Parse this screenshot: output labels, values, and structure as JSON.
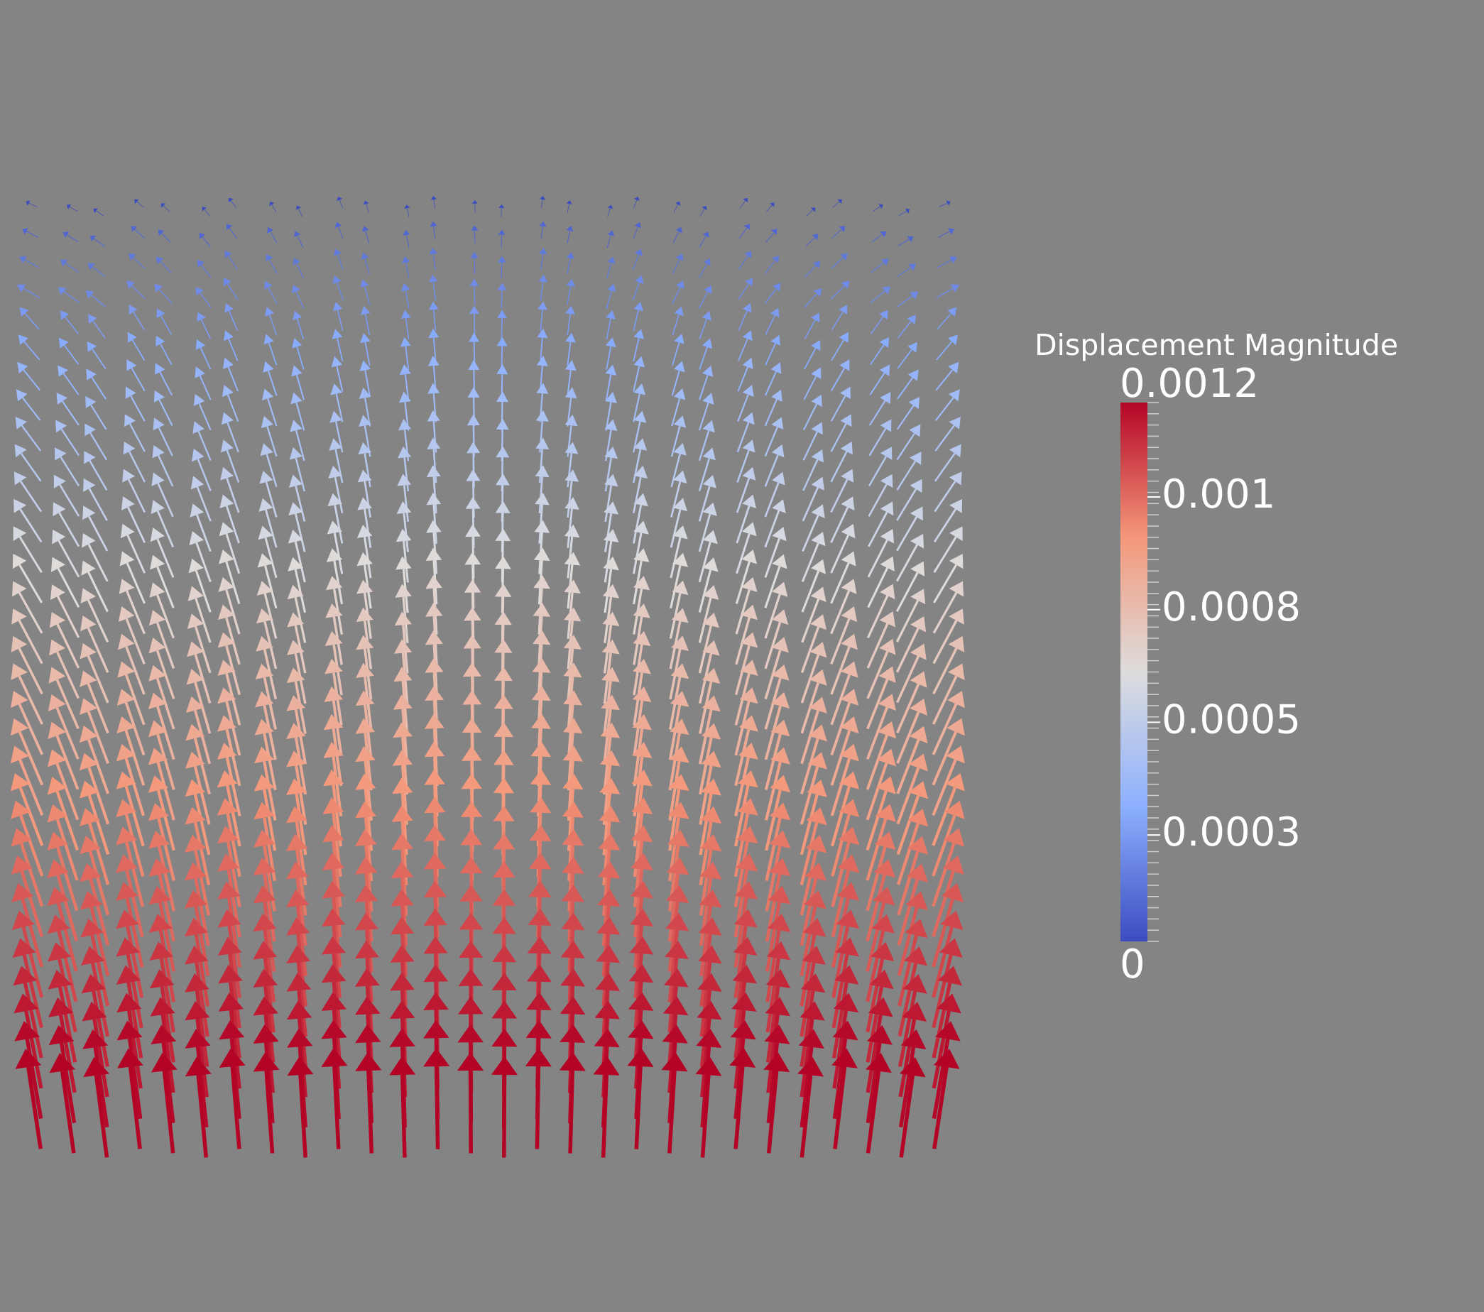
{
  "legend": {
    "title": "Displacement Magnitude",
    "max": 0.0012,
    "labels": [
      0.001,
      0.0008,
      0.0005,
      0.0003
    ],
    "min": 0
  }
}
